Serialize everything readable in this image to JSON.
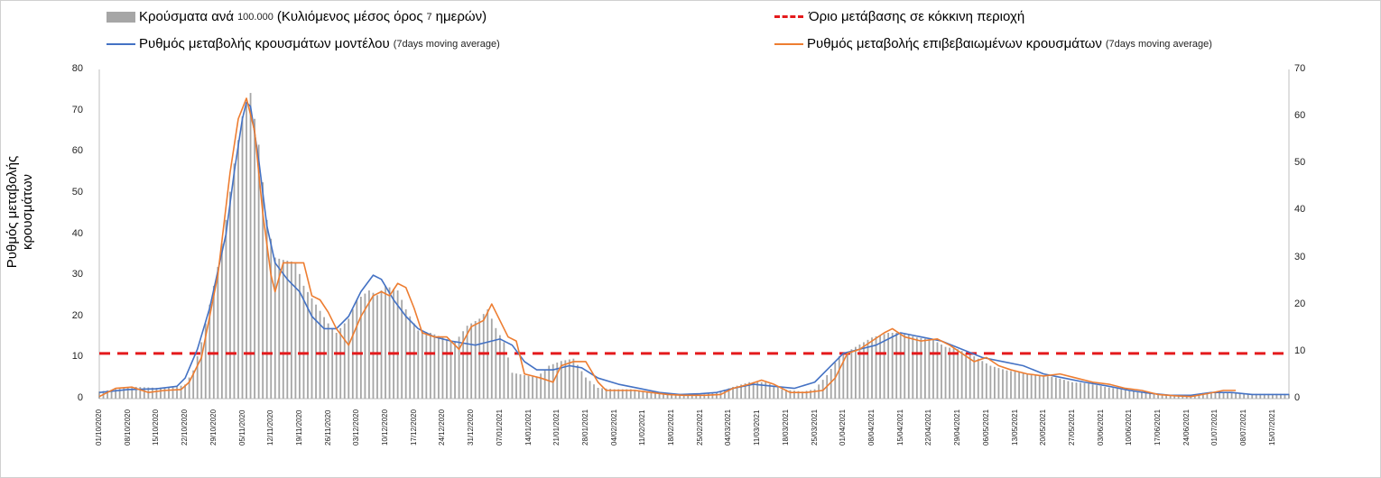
{
  "chart_data": {
    "type": "bar",
    "title": "",
    "ylabel": "Ρυθμός μεταβολής κρουσμάτων",
    "ylim_left": [
      0,
      80
    ],
    "ylim_right": [
      0,
      70
    ],
    "left_ticks": [
      "80",
      "70",
      "60",
      "50",
      "40",
      "30",
      "20",
      "10",
      "0"
    ],
    "right_ticks": [
      "70",
      "60",
      "50",
      "40",
      "30",
      "20",
      "10",
      "0"
    ],
    "legend": {
      "bars": {
        "label": "Κρούσματα ανά",
        "small": "100.000",
        "label2": "(Κυλιόμενος μέσος όρος",
        "small2": "7",
        "label3": "ημερών)"
      },
      "threshold": {
        "label": "Όριο μετάβασης σε κόκκινη περιοχή"
      },
      "model": {
        "label": "Ρυθμός μεταβολής κρουσμάτων μοντέλου",
        "note": "(7days moving average)"
      },
      "confirmed": {
        "label": "Ρυθμός μεταβολής επιβεβαιωμένων κρουσμάτων",
        "note": "(7days moving average)"
      }
    },
    "colors": {
      "bars": "#a6a6a6",
      "model": "#4472c4",
      "confirmed": "#ed7d31",
      "threshold": "#e41a1c"
    },
    "threshold_value": 11,
    "x_start": "2020-10-01",
    "x_end": "2021-07-19",
    "xticks": [
      "01/10/2020",
      "08/10/2020",
      "15/10/2020",
      "22/10/2020",
      "29/10/2020",
      "05/11/2020",
      "12/11/2020",
      "19/11/2020",
      "26/11/2020",
      "03/12/2020",
      "10/12/2020",
      "17/12/2020",
      "24/12/2020",
      "31/12/2020",
      "07/01/2021",
      "14/01/2021",
      "21/01/2021",
      "28/01/2021",
      "04/02/2021",
      "11/02/2021",
      "18/02/2021",
      "25/02/2021",
      "04/03/2021",
      "11/03/2021",
      "18/03/2021",
      "25/03/2021",
      "01/04/2021",
      "08/04/2021",
      "15/04/2021",
      "22/04/2021",
      "29/04/2021",
      "06/05/2021",
      "13/05/2021",
      "20/05/2021",
      "27/05/2021",
      "03/06/2021",
      "10/06/2021",
      "17/06/2021",
      "24/06/2021",
      "01/07/2021",
      "08/07/2021",
      "15/07/2021"
    ],
    "series": [
      {
        "name": "Κρούσματα ανά 100.000",
        "axis": "right",
        "points": [
          [
            "2020-10-01",
            1.5
          ],
          [
            "2020-10-05",
            2.0
          ],
          [
            "2020-10-10",
            2.5
          ],
          [
            "2020-10-15",
            2.3
          ],
          [
            "2020-10-20",
            2.5
          ],
          [
            "2020-10-22",
            3
          ],
          [
            "2020-10-24",
            6
          ],
          [
            "2020-10-26",
            12
          ],
          [
            "2020-10-28",
            20
          ],
          [
            "2020-10-30",
            28
          ],
          [
            "2020-11-01",
            38
          ],
          [
            "2020-11-03",
            50
          ],
          [
            "2020-11-05",
            60
          ],
          [
            "2020-11-07",
            65
          ],
          [
            "2020-11-09",
            54
          ],
          [
            "2020-11-11",
            38
          ],
          [
            "2020-11-13",
            30
          ],
          [
            "2020-11-15",
            29.5
          ],
          [
            "2020-11-18",
            29
          ],
          [
            "2020-11-20",
            24
          ],
          [
            "2020-11-23",
            20
          ],
          [
            "2020-11-26",
            16
          ],
          [
            "2020-11-28",
            14
          ],
          [
            "2020-12-01",
            17
          ],
          [
            "2020-12-03",
            21
          ],
          [
            "2020-12-06",
            23
          ],
          [
            "2020-12-08",
            22
          ],
          [
            "2020-12-10",
            24
          ],
          [
            "2020-12-13",
            23
          ],
          [
            "2020-12-15",
            19
          ],
          [
            "2020-12-18",
            14.5
          ],
          [
            "2020-12-21",
            14
          ],
          [
            "2020-12-24",
            13
          ],
          [
            "2020-12-27",
            12
          ],
          [
            "2020-12-30",
            15.5
          ],
          [
            "2021-01-02",
            17
          ],
          [
            "2021-01-04",
            19
          ],
          [
            "2021-01-06",
            15
          ],
          [
            "2021-01-08",
            12
          ],
          [
            "2021-01-10",
            5.5
          ],
          [
            "2021-01-13",
            5
          ],
          [
            "2021-01-16",
            4.5
          ],
          [
            "2021-01-19",
            7
          ],
          [
            "2021-01-22",
            8
          ],
          [
            "2021-01-25",
            8.5
          ],
          [
            "2021-01-28",
            4.5
          ],
          [
            "2021-01-31",
            2.3
          ],
          [
            "2021-02-04",
            2
          ],
          [
            "2021-02-08",
            2
          ],
          [
            "2021-02-12",
            1.5
          ],
          [
            "2021-02-16",
            1.2
          ],
          [
            "2021-02-20",
            1
          ],
          [
            "2021-02-25",
            0.8
          ],
          [
            "2021-03-01",
            1.3
          ],
          [
            "2021-03-05",
            2.5
          ],
          [
            "2021-03-09",
            3.5
          ],
          [
            "2021-03-13",
            3.5
          ],
          [
            "2021-03-17",
            2
          ],
          [
            "2021-03-22",
            1.5
          ],
          [
            "2021-03-25",
            2
          ],
          [
            "2021-03-28",
            5
          ],
          [
            "2021-03-31",
            9
          ],
          [
            "2021-04-04",
            11
          ],
          [
            "2021-04-08",
            13
          ],
          [
            "2021-04-12",
            14
          ],
          [
            "2021-04-15",
            14
          ],
          [
            "2021-04-19",
            13
          ],
          [
            "2021-04-23",
            12.5
          ],
          [
            "2021-04-26",
            11
          ],
          [
            "2021-04-29",
            10.5
          ],
          [
            "2021-05-03",
            9
          ],
          [
            "2021-05-07",
            7
          ],
          [
            "2021-05-11",
            6
          ],
          [
            "2021-05-15",
            5.5
          ],
          [
            "2021-05-19",
            5
          ],
          [
            "2021-05-23",
            4.5
          ],
          [
            "2021-05-27",
            3.5
          ],
          [
            "2021-05-31",
            3.2
          ],
          [
            "2021-06-04",
            2.5
          ],
          [
            "2021-06-08",
            2
          ],
          [
            "2021-06-12",
            1.5
          ],
          [
            "2021-06-16",
            1
          ],
          [
            "2021-06-20",
            0.7
          ],
          [
            "2021-06-24",
            0.6
          ],
          [
            "2021-06-28",
            1.2
          ],
          [
            "2021-07-02",
            1.5
          ],
          [
            "2021-07-06",
            1.2
          ],
          [
            "2021-07-10",
            1
          ],
          [
            "2021-07-14",
            1
          ],
          [
            "2021-07-19",
            1
          ]
        ]
      },
      {
        "name": "Ρυθμός μεταβολής κρουσμάτων μοντέλου",
        "axis": "left",
        "points": [
          [
            "2020-10-01",
            1.5
          ],
          [
            "2020-10-08",
            2.2
          ],
          [
            "2020-10-15",
            2.4
          ],
          [
            "2020-10-20",
            3
          ],
          [
            "2020-10-22",
            5
          ],
          [
            "2020-10-25",
            12
          ],
          [
            "2020-10-28",
            22
          ],
          [
            "2020-11-01",
            40
          ],
          [
            "2020-11-03",
            55
          ],
          [
            "2020-11-05",
            68
          ],
          [
            "2020-11-06",
            72
          ],
          [
            "2020-11-07",
            71
          ],
          [
            "2020-11-09",
            58
          ],
          [
            "2020-11-11",
            42
          ],
          [
            "2020-11-13",
            33
          ],
          [
            "2020-11-16",
            29
          ],
          [
            "2020-11-19",
            26
          ],
          [
            "2020-11-22",
            20
          ],
          [
            "2020-11-25",
            17
          ],
          [
            "2020-11-28",
            17
          ],
          [
            "2020-12-01",
            20
          ],
          [
            "2020-12-04",
            26
          ],
          [
            "2020-12-07",
            30
          ],
          [
            "2020-12-09",
            29
          ],
          [
            "2020-12-12",
            24
          ],
          [
            "2020-12-15",
            20
          ],
          [
            "2020-12-18",
            17
          ],
          [
            "2020-12-22",
            15
          ],
          [
            "2020-12-26",
            14
          ],
          [
            "2021-01-01",
            13
          ],
          [
            "2021-01-05",
            14
          ],
          [
            "2021-01-07",
            14.5
          ],
          [
            "2021-01-10",
            13
          ],
          [
            "2021-01-13",
            9
          ],
          [
            "2021-01-16",
            7
          ],
          [
            "2021-01-20",
            7
          ],
          [
            "2021-01-24",
            8
          ],
          [
            "2021-01-27",
            7.5
          ],
          [
            "2021-01-31",
            5
          ],
          [
            "2021-02-05",
            3.5
          ],
          [
            "2021-02-10",
            2.5
          ],
          [
            "2021-02-15",
            1.5
          ],
          [
            "2021-02-20",
            1
          ],
          [
            "2021-02-25",
            1.2
          ],
          [
            "2021-03-01",
            1.5
          ],
          [
            "2021-03-05",
            2.5
          ],
          [
            "2021-03-10",
            3.5
          ],
          [
            "2021-03-15",
            3
          ],
          [
            "2021-03-20",
            2.5
          ],
          [
            "2021-03-25",
            4
          ],
          [
            "2021-03-28",
            7
          ],
          [
            "2021-04-01",
            11
          ],
          [
            "2021-04-05",
            12
          ],
          [
            "2021-04-09",
            13
          ],
          [
            "2021-04-15",
            16
          ],
          [
            "2021-04-20",
            15
          ],
          [
            "2021-04-25",
            14
          ],
          [
            "2021-04-30",
            12
          ],
          [
            "2021-05-05",
            10
          ],
          [
            "2021-05-10",
            9
          ],
          [
            "2021-05-15",
            8
          ],
          [
            "2021-05-20",
            6
          ],
          [
            "2021-05-25",
            5
          ],
          [
            "2021-05-30",
            4
          ],
          [
            "2021-06-05",
            3
          ],
          [
            "2021-06-10",
            2
          ],
          [
            "2021-06-15",
            1.3
          ],
          [
            "2021-06-20",
            0.8
          ],
          [
            "2021-06-25",
            0.8
          ],
          [
            "2021-06-30",
            1.5
          ],
          [
            "2021-07-05",
            1.5
          ],
          [
            "2021-07-10",
            1
          ],
          [
            "2021-07-19",
            1
          ]
        ]
      },
      {
        "name": "Ρυθμός μεταβολής επιβεβαιωμένων κρουσμάτων",
        "axis": "left",
        "points": [
          [
            "2020-10-01",
            0.5
          ],
          [
            "2020-10-05",
            2.5
          ],
          [
            "2020-10-09",
            2.8
          ],
          [
            "2020-10-13",
            1.5
          ],
          [
            "2020-10-17",
            2
          ],
          [
            "2020-10-21",
            2.2
          ],
          [
            "2020-10-23",
            4
          ],
          [
            "2020-10-26",
            10
          ],
          [
            "2020-10-30",
            30
          ],
          [
            "2020-11-02",
            55
          ],
          [
            "2020-11-04",
            68
          ],
          [
            "2020-11-06",
            73
          ],
          [
            "2020-11-08",
            65
          ],
          [
            "2020-11-10",
            45
          ],
          [
            "2020-11-12",
            30
          ],
          [
            "2020-11-13",
            26
          ],
          [
            "2020-11-15",
            33
          ],
          [
            "2020-11-17",
            33
          ],
          [
            "2020-11-20",
            33
          ],
          [
            "2020-11-22",
            25
          ],
          [
            "2020-11-24",
            24
          ],
          [
            "2020-11-26",
            21
          ],
          [
            "2020-11-28",
            17
          ],
          [
            "2020-12-01",
            13
          ],
          [
            "2020-12-04",
            20
          ],
          [
            "2020-12-07",
            25
          ],
          [
            "2020-12-09",
            26
          ],
          [
            "2020-12-11",
            25
          ],
          [
            "2020-12-13",
            28
          ],
          [
            "2020-12-15",
            27
          ],
          [
            "2020-12-17",
            22
          ],
          [
            "2020-12-19",
            16
          ],
          [
            "2020-12-22",
            15
          ],
          [
            "2020-12-25",
            15
          ],
          [
            "2020-12-28",
            12
          ],
          [
            "2020-12-31",
            17.5
          ],
          [
            "2021-01-03",
            19
          ],
          [
            "2021-01-05",
            23
          ],
          [
            "2021-01-07",
            19
          ],
          [
            "2021-01-09",
            15
          ],
          [
            "2021-01-11",
            14
          ],
          [
            "2021-01-13",
            6
          ],
          [
            "2021-01-17",
            5
          ],
          [
            "2021-01-20",
            4
          ],
          [
            "2021-01-22",
            8
          ],
          [
            "2021-01-25",
            9
          ],
          [
            "2021-01-28",
            9
          ],
          [
            "2021-01-31",
            4
          ],
          [
            "2021-02-02",
            2
          ],
          [
            "2021-02-05",
            2
          ],
          [
            "2021-02-09",
            2
          ],
          [
            "2021-02-13",
            1.5
          ],
          [
            "2021-02-17",
            1
          ],
          [
            "2021-02-21",
            0.8
          ],
          [
            "2021-02-26",
            0.8
          ],
          [
            "2021-03-02",
            1
          ],
          [
            "2021-03-05",
            2.5
          ],
          [
            "2021-03-09",
            3.5
          ],
          [
            "2021-03-12",
            4.5
          ],
          [
            "2021-03-15",
            3.5
          ],
          [
            "2021-03-19",
            1.5
          ],
          [
            "2021-03-23",
            1.5
          ],
          [
            "2021-03-27",
            2
          ],
          [
            "2021-03-30",
            5
          ],
          [
            "2021-04-02",
            11
          ],
          [
            "2021-04-05",
            12
          ],
          [
            "2021-04-08",
            14
          ],
          [
            "2021-04-11",
            16
          ],
          [
            "2021-04-13",
            17
          ],
          [
            "2021-04-16",
            15
          ],
          [
            "2021-04-20",
            14
          ],
          [
            "2021-04-24",
            14.5
          ],
          [
            "2021-04-27",
            13
          ],
          [
            "2021-04-30",
            11
          ],
          [
            "2021-05-03",
            9
          ],
          [
            "2021-05-06",
            10
          ],
          [
            "2021-05-09",
            8
          ],
          [
            "2021-05-12",
            7
          ],
          [
            "2021-05-16",
            6
          ],
          [
            "2021-05-20",
            5.5
          ],
          [
            "2021-05-24",
            6
          ],
          [
            "2021-05-28",
            5
          ],
          [
            "2021-06-01",
            4
          ],
          [
            "2021-06-05",
            3.5
          ],
          [
            "2021-06-09",
            2.5
          ],
          [
            "2021-06-13",
            2
          ],
          [
            "2021-06-17",
            1
          ],
          [
            "2021-06-21",
            0.7
          ],
          [
            "2021-06-25",
            0.5
          ],
          [
            "2021-06-29",
            1.2
          ],
          [
            "2021-07-03",
            2
          ],
          [
            "2021-07-06",
            2
          ]
        ]
      }
    ]
  }
}
